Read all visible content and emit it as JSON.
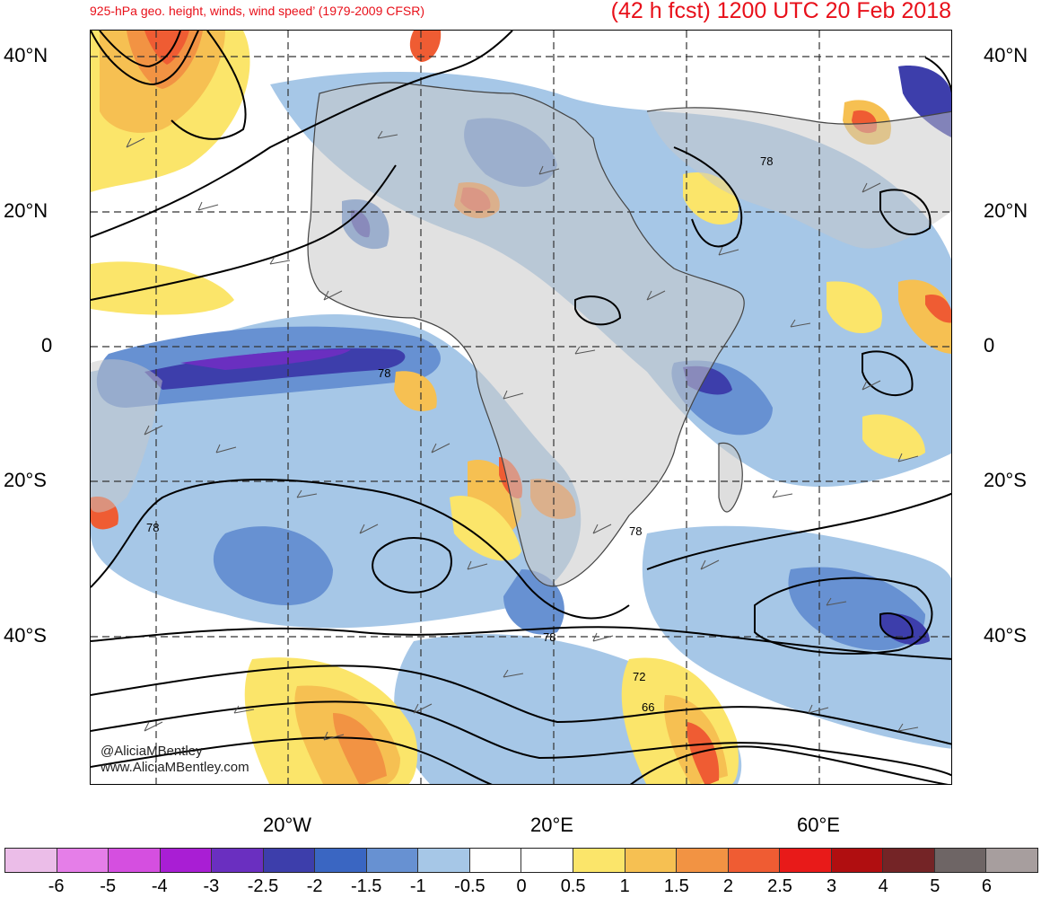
{
  "title": {
    "left": "925-hPa geo. height, winds, wind speed’ (1979-2009 CFSR)",
    "right": "(42 h fcst) 1200 UTC 20 Feb 2018"
  },
  "axes": {
    "lat_labels": [
      "40°N",
      "20°N",
      "0",
      "20°S",
      "40°S"
    ],
    "lon_labels": [
      "20°W",
      "20°E",
      "60°E"
    ]
  },
  "contour_labels": [
    "78",
    "78",
    "78",
    "78",
    "78",
    "72",
    "66"
  ],
  "credit": {
    "line1": "@AliciaMBentley",
    "line2": "www.AliciaMBentley.com"
  },
  "colorbar": {
    "labels": [
      "-6",
      "-5",
      "-4",
      "-3",
      "-2.5",
      "-2",
      "-1.5",
      "-1",
      "-0.5",
      "0",
      "0.5",
      "1",
      "1.5",
      "2",
      "2.5",
      "3",
      "4",
      "5",
      "6"
    ],
    "colors": [
      "#ebbde8",
      "#e57ee8",
      "#d54fe0",
      "#a91ed4",
      "#6a2fc0",
      "#3d3eab",
      "#3a66c2",
      "#6791d2",
      "#a6c7e7",
      "#ffffff",
      "#ffffff",
      "#fbe56a",
      "#f6c052",
      "#f29343",
      "#ef5c33",
      "#e81a19",
      "#b00e10",
      "#742426",
      "#6e6565",
      "#a79e9e"
    ]
  }
}
